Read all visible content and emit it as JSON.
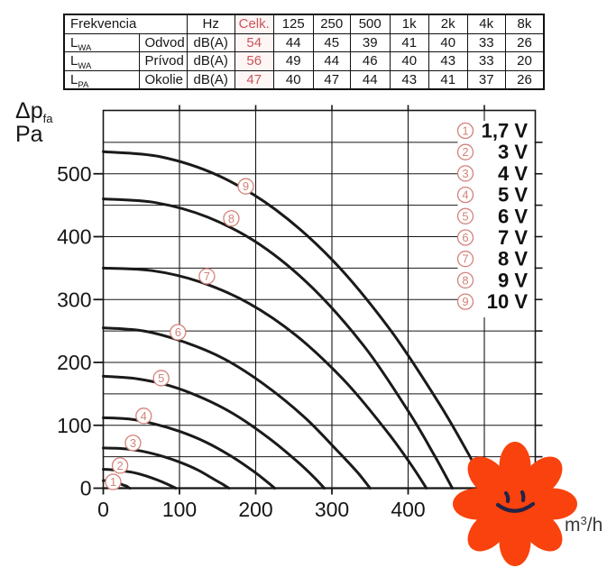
{
  "table": {
    "accent_color": "#c8555c",
    "header": {
      "col1": "Frekvencia",
      "hz": "Hz",
      "celk": "Celk.",
      "freqs": [
        "125",
        "250",
        "500",
        "1k",
        "2k",
        "4k",
        "8k"
      ]
    },
    "rows": [
      {
        "symbol": "L",
        "sub": "WA",
        "name": "Odvod",
        "unit": "dB(A)",
        "celk": "54",
        "values": [
          "44",
          "45",
          "39",
          "41",
          "40",
          "33",
          "26"
        ]
      },
      {
        "symbol": "L",
        "sub": "WA",
        "name": "Prívod",
        "unit": "dB(A)",
        "celk": "56",
        "values": [
          "49",
          "44",
          "46",
          "40",
          "43",
          "33",
          "20"
        ]
      },
      {
        "symbol": "L",
        "sub": "PA",
        "name": "Okolie",
        "unit": "dB(A)",
        "celk": "47",
        "values": [
          "40",
          "47",
          "44",
          "43",
          "41",
          "37",
          "26"
        ]
      }
    ]
  },
  "chart_data": {
    "type": "line",
    "title": "",
    "ylabel": {
      "main": "Δp",
      "sub": "fa",
      "unit": "Pa"
    },
    "xlabel": {
      "main": "m",
      "sup": "3",
      "rest": "/h"
    },
    "xlim": [
      0,
      565
    ],
    "ylim": [
      0,
      600
    ],
    "x_ticks": [
      0,
      100,
      200,
      300,
      400
    ],
    "y_ticks": [
      0,
      100,
      200,
      300,
      400,
      500
    ],
    "grid_step_x": 100,
    "grid_step_y": 50,
    "grid": true,
    "legend_position": "top-right",
    "curve_color": "#1a1a1a",
    "label_color": "#d4827a",
    "legend_text_color": "#111111",
    "axis_text_color": "#161616",
    "unit_text_color": "#3a3a3a",
    "series": [
      {
        "digit": "1",
        "voltage": "1,7 V",
        "marker_at": {
          "q": 13,
          "p": 10
        },
        "points": [
          [
            0,
            12
          ],
          [
            5,
            12
          ],
          [
            11,
            11
          ],
          [
            16,
            10
          ],
          [
            21,
            8
          ],
          [
            26,
            5
          ],
          [
            31,
            3
          ],
          [
            33,
            1
          ],
          [
            35,
            0
          ]
        ]
      },
      {
        "digit": "2",
        "voltage": "3 V",
        "marker_at": {
          "q": 22,
          "p": 36
        },
        "points": [
          [
            0,
            30
          ],
          [
            14,
            29
          ],
          [
            28,
            27
          ],
          [
            43,
            24
          ],
          [
            57,
            19
          ],
          [
            71,
            13
          ],
          [
            83,
            7
          ],
          [
            90,
            3
          ],
          [
            95,
            0
          ]
        ]
      },
      {
        "digit": "3",
        "voltage": "4 V",
        "marker_at": {
          "q": 39,
          "p": 72
        },
        "points": [
          [
            0,
            64
          ],
          [
            25,
            63
          ],
          [
            50,
            59
          ],
          [
            74,
            52
          ],
          [
            99,
            42
          ],
          [
            124,
            29
          ],
          [
            144,
            15
          ],
          [
            157,
            6
          ],
          [
            165,
            0
          ]
        ]
      },
      {
        "digit": "4",
        "voltage": "5 V",
        "marker_at": {
          "q": 53,
          "p": 115
        },
        "points": [
          [
            0,
            112
          ],
          [
            34,
            110
          ],
          [
            68,
            102
          ],
          [
            101,
            90
          ],
          [
            135,
            73
          ],
          [
            169,
            50
          ],
          [
            197,
            27
          ],
          [
            214,
            11
          ],
          [
            225,
            0
          ]
        ]
      },
      {
        "digit": "5",
        "voltage": "6 V",
        "marker_at": {
          "q": 76,
          "p": 175
        },
        "points": [
          [
            0,
            178
          ],
          [
            44,
            174
          ],
          [
            87,
            163
          ],
          [
            131,
            143
          ],
          [
            174,
            116
          ],
          [
            218,
            79
          ],
          [
            254,
            43
          ],
          [
            276,
            18
          ],
          [
            290,
            0
          ]
        ]
      },
      {
        "digit": "6",
        "voltage": "7 V",
        "marker_at": {
          "q": 98,
          "p": 248
        },
        "points": [
          [
            0,
            255
          ],
          [
            53,
            250
          ],
          [
            105,
            233
          ],
          [
            158,
            206
          ],
          [
            210,
            166
          ],
          [
            263,
            114
          ],
          [
            306,
            61
          ],
          [
            333,
            26
          ],
          [
            350,
            0
          ]
        ]
      },
      {
        "digit": "7",
        "voltage": "8 V",
        "marker_at": {
          "q": 136,
          "p": 337
        },
        "points": [
          [
            0,
            350
          ],
          [
            64,
            346
          ],
          [
            127,
            328
          ],
          [
            191,
            294
          ],
          [
            254,
            242
          ],
          [
            318,
            169
          ],
          [
            371,
            92
          ],
          [
            403,
            39
          ],
          [
            424,
            0
          ]
        ]
      },
      {
        "digit": "8",
        "voltage": "9 V",
        "marker_at": {
          "q": 168,
          "p": 429
        },
        "points": [
          [
            0,
            460
          ],
          [
            69,
            454
          ],
          [
            137,
            431
          ],
          [
            206,
            387
          ],
          [
            275,
            318
          ],
          [
            344,
            223
          ],
          [
            401,
            121
          ],
          [
            435,
            51
          ],
          [
            458,
            0
          ]
        ]
      },
      {
        "digit": "9",
        "voltage": "10 V",
        "marker_at": {
          "q": 187,
          "p": 480
        },
        "points": [
          [
            0,
            535
          ],
          [
            75,
            527
          ],
          [
            151,
            497
          ],
          [
            226,
            443
          ],
          [
            302,
            361
          ],
          [
            377,
            251
          ],
          [
            440,
            136
          ],
          [
            478,
            57
          ],
          [
            503,
            0
          ]
        ]
      }
    ]
  },
  "flower": {
    "petal_color": "#f9420d",
    "face_color": "#232347"
  }
}
